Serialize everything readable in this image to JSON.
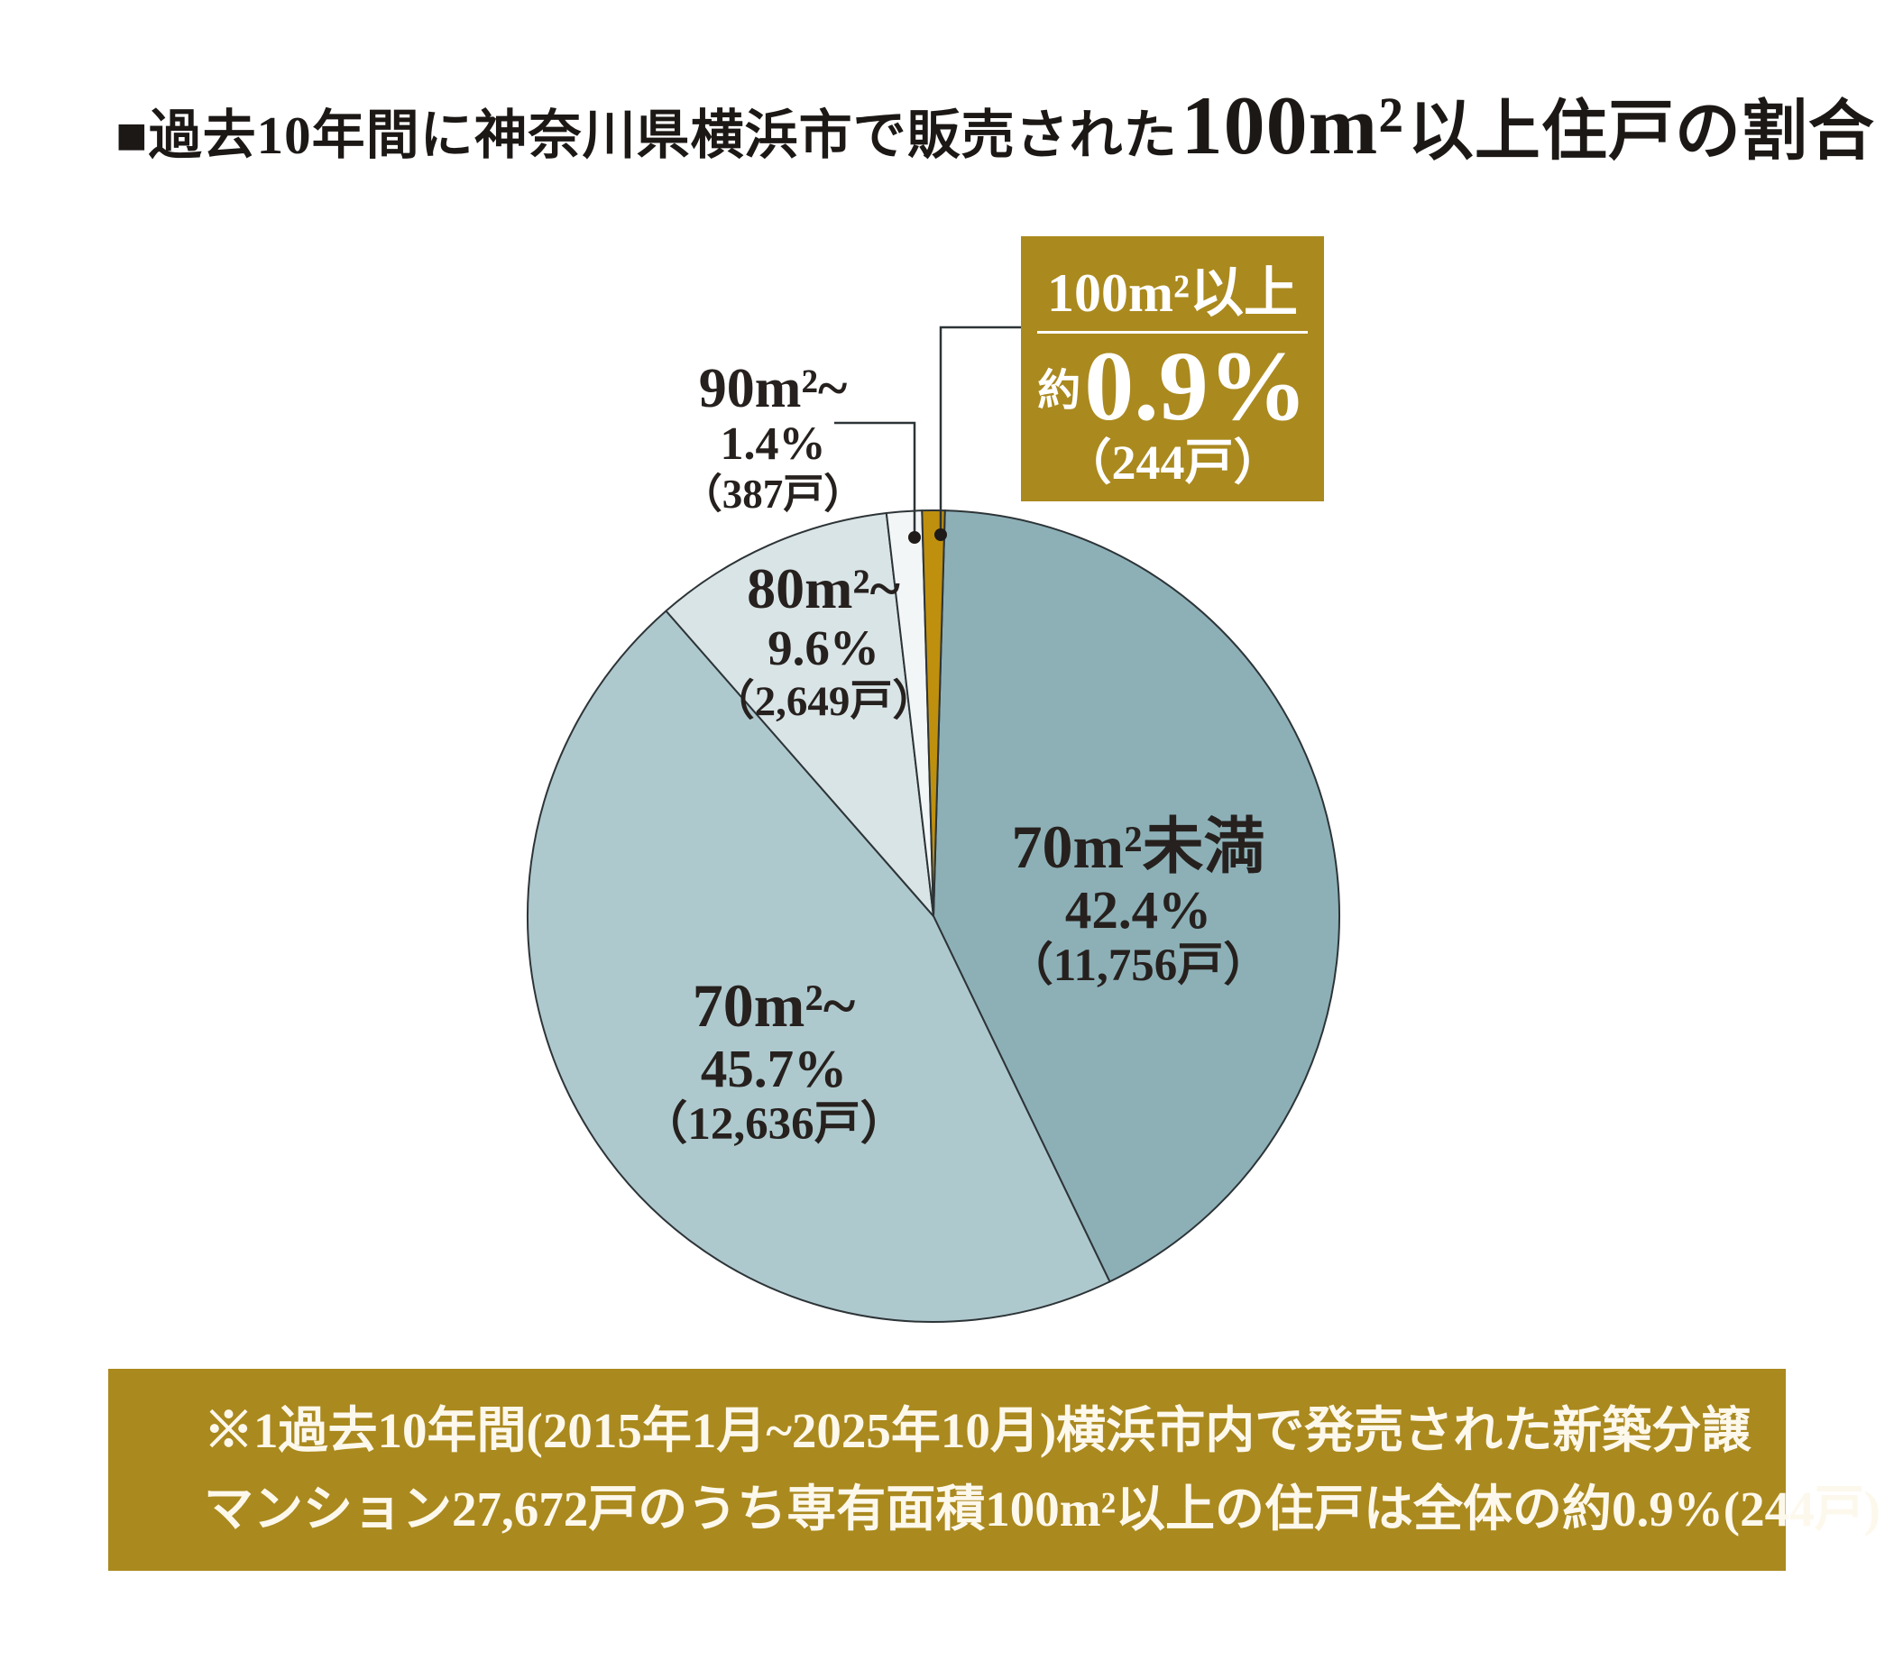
{
  "title": {
    "prefix": "■過去10年間に神奈川県横浜市で販売された",
    "big": "100m²",
    "suffix": "以上住戸の割合"
  },
  "chart_data": {
    "type": "pie",
    "title": "過去10年間に神奈川県横浜市で販売された100m²以上住戸の割合",
    "direction": "clockwise",
    "layout_note": "100m²以上 slice centered at 12 o'clock, slices clockwise in listed order",
    "stroke": "#2d3437",
    "slices": [
      {
        "label": "70m²未満",
        "pct": 42.4,
        "pct_label": "42.4%",
        "count": 11756,
        "count_label": "（11,756戸）",
        "color": "#8db0b7"
      },
      {
        "label": "70m²~",
        "pct": 45.7,
        "pct_label": "45.7%",
        "count": 12636,
        "count_label": "（12,636戸）",
        "color": "#aec9ce"
      },
      {
        "label": "80m²~",
        "pct": 9.6,
        "pct_label": "9.6%",
        "count": 2649,
        "count_label": "（2,649戸）",
        "color": "#d9e4e6"
      },
      {
        "label": "90m²~",
        "pct": 1.4,
        "pct_label": "1.4%",
        "count": 387,
        "count_label": "（387戸）",
        "color": "#f2f6f6"
      },
      {
        "label": "100m²以上",
        "pct": 0.9,
        "pct_label": "約0.9%",
        "count": 244,
        "count_label": "（244戸）",
        "color": "#bf900e"
      }
    ]
  },
  "callout": {
    "title": "100m²以上",
    "approx": "約",
    "value": "0.9%",
    "count": "（244戸）"
  },
  "footnote": {
    "line1": "※1過去10年間(2015年1月~2025年10月)横浜市内で発売された新築分譲",
    "line2": "マンション27,672戸のうち専有面積100m²以上の住戸は全体の約0.9%(244戸)"
  },
  "colors": {
    "gold_box": "#aa891e",
    "gold_slice": "#bf900e",
    "text_dark": "#26211e",
    "footnote_text": "#fdf8ec",
    "white": "#ffffff"
  }
}
